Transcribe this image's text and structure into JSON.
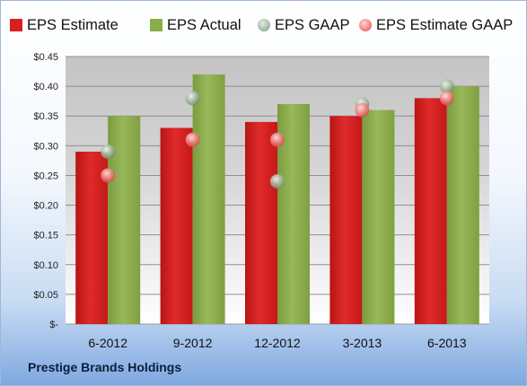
{
  "chart_data": {
    "type": "bar",
    "categories": [
      "6-2012",
      "9-2012",
      "12-2012",
      "3-2013",
      "6-2013"
    ],
    "series": [
      {
        "name": "EPS Estimate",
        "values": [
          0.29,
          0.33,
          0.34,
          0.35,
          0.38
        ],
        "color": "#d92020",
        "kind": "bar"
      },
      {
        "name": "EPS Actual",
        "values": [
          0.35,
          0.42,
          0.37,
          0.36,
          0.4
        ],
        "color": "#8aae4a",
        "kind": "bar"
      },
      {
        "name": "EPS GAAP",
        "values": [
          0.29,
          0.38,
          0.24,
          0.37,
          0.4
        ],
        "color": "#9fb59f",
        "kind": "marker"
      },
      {
        "name": "EPS Estimate GAAP",
        "values": [
          0.25,
          0.31,
          0.31,
          0.36,
          0.38
        ],
        "color": "#f07878",
        "kind": "marker"
      }
    ],
    "y_ticks": [
      "$-",
      "$0.05",
      "$0.10",
      "$0.15",
      "$0.20",
      "$0.25",
      "$0.30",
      "$0.35",
      "$0.40",
      "$0.45"
    ],
    "ylim": [
      0,
      0.45
    ],
    "grid": true,
    "legend_position": "top"
  },
  "footer": {
    "company": "Prestige Brands Holdings"
  }
}
